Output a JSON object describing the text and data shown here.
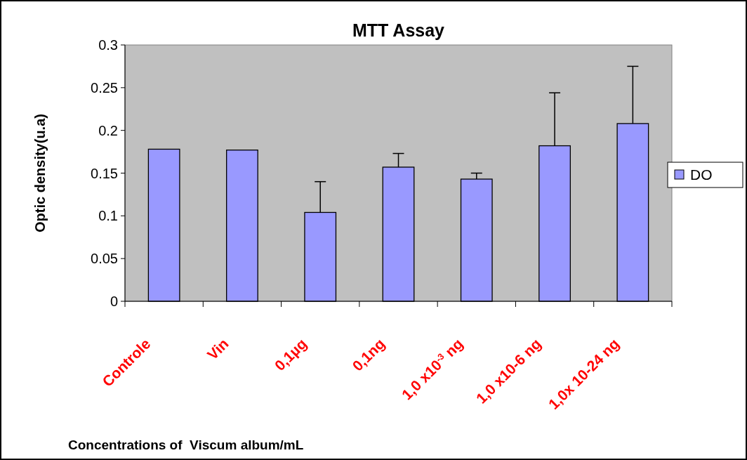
{
  "chart_data": {
    "type": "bar",
    "title": "MTT Assay",
    "xlabel": "Concentrations of  Viscum album/mL",
    "ylabel": "Optic density(u.a)",
    "categories": [
      "Controle",
      "Vin",
      "0,1µg",
      "0,1ng",
      "1,0 x10$^{-3}$ ng",
      "1,0 x10-6 ng",
      "1,0x 10-24 ng"
    ],
    "series": [
      {
        "name": "DO",
        "color": "#9999ff",
        "values": [
          0.178,
          0.177,
          0.104,
          0.157,
          0.143,
          0.182,
          0.208
        ],
        "errors": [
          null,
          null,
          [
            0.104,
            0.14
          ],
          [
            0.157,
            0.173
          ],
          [
            0.143,
            0.15
          ],
          [
            0.182,
            0.244
          ],
          [
            0.208,
            0.275
          ]
        ]
      }
    ],
    "ylim": [
      0,
      0.3
    ],
    "yticks": [
      0,
      0.05,
      0.1,
      0.15,
      0.2,
      0.25,
      0.3
    ],
    "legend": "right",
    "grid": false
  }
}
